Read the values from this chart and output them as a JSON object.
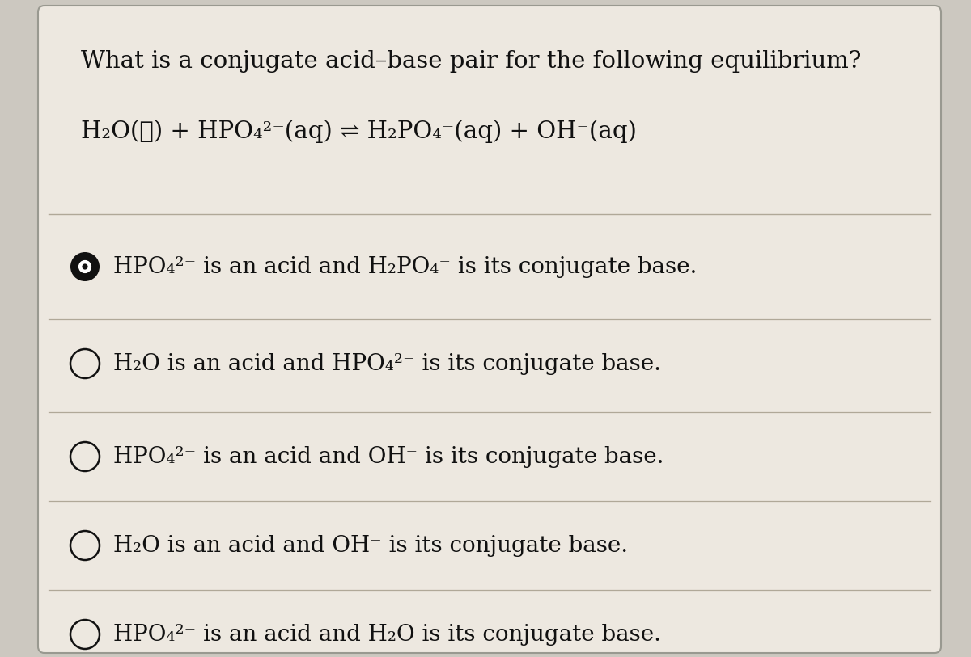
{
  "background_color": "#ccc8c0",
  "panel_color": "#ede8e0",
  "title": "What is a conjugate acid–base pair for the following equilibrium?",
  "equation": "H₂O(ℓ) + HPO₄²⁻(aq) ⇌ H₂PO₄⁻(aq) + OH⁻(aq)",
  "options": [
    {
      "text": "HPO₄²⁻ is an acid and H₂PO₄⁻ is its conjugate base.",
      "selected": true
    },
    {
      "text": "H₂O is an acid and HPO₄²⁻ is its conjugate base.",
      "selected": false
    },
    {
      "text": "HPO₄²⁻ is an acid and OH⁻ is its conjugate base.",
      "selected": false
    },
    {
      "text": "H₂O is an acid and OH⁻ is its conjugate base.",
      "selected": false
    },
    {
      "text": "HPO₄²⁻ is an acid and H₂O is its conjugate base.",
      "selected": false
    }
  ],
  "title_fontsize": 21,
  "equation_fontsize": 21,
  "option_fontsize": 20,
  "text_color": "#111111",
  "divider_color": "#b0a898",
  "selected_dot_color": "#111111"
}
